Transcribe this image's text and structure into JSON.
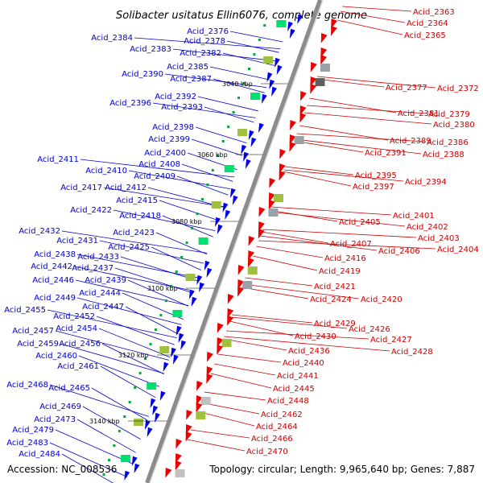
{
  "title": "Solibacter usitatus Ellin6076, complete genome",
  "accession": "Accession: NC_008536",
  "topology": "Topology: circular; Length: 9,965,640 bp; Genes: 7,887",
  "colors": {
    "backbone": "#8c8c8c",
    "forward": "#0000ee",
    "reverse": "#ee0000",
    "left_label": "#0000cc",
    "right_label": "#cc0000"
  },
  "ticks": [
    "3040 kbp",
    "3060 kbp",
    "3080 kbp",
    "3100 kbp",
    "3120 kbp",
    "3140 kbp"
  ],
  "left_labels": [
    "Acid_2376",
    "Acid_2384",
    "Acid_2378",
    "Acid_2383",
    "Acid_2382",
    "Acid_2385",
    "Acid_2390",
    "Acid_2387",
    "Acid_2392",
    "Acid_2396",
    "Acid_2393",
    "Acid_2398",
    "Acid_2399",
    "Acid_2400",
    "Acid_2408",
    "Acid_2411",
    "Acid_2410",
    "Acid_2409",
    "Acid_2417",
    "Acid_2412",
    "Acid_2415",
    "Acid_2422",
    "Acid_2418",
    "Acid_2423",
    "Acid_2432",
    "Acid_2431",
    "Acid_2425",
    "Acid_2438",
    "Acid_2433",
    "Acid_2442",
    "Acid_2437",
    "Acid_2446",
    "Acid_2439",
    "Acid_2444",
    "Acid_2449",
    "Acid_2447",
    "Acid_2455",
    "Acid_2452",
    "Acid_2454",
    "Acid_2457",
    "Acid_2459",
    "Acid_2456",
    "Acid_2460",
    "Acid_2461",
    "Acid_2468",
    "Acid_2465",
    "Acid_2469",
    "Acid_2473",
    "Acid_2479",
    "Acid_2483",
    "Acid_2484"
  ],
  "right_labels": [
    "Acid_2363",
    "Acid_2364",
    "Acid_2365",
    "Acid_2377",
    "Acid_2372",
    "Acid_2381",
    "Acid_2379",
    "Acid_2380",
    "Acid_2389",
    "Acid_2386",
    "Acid_2391",
    "Acid_2388",
    "Acid_2395",
    "Acid_2394",
    "Acid_2397",
    "Acid_2401",
    "Acid_2405",
    "Acid_2402",
    "Acid_2403",
    "Acid_2407",
    "Acid_2406",
    "Acid_2404",
    "Acid_2416",
    "Acid_2419",
    "Acid_2421",
    "Acid_2424",
    "Acid_2420",
    "Acid_2429",
    "Acid_2426",
    "Acid_2430",
    "Acid_2427",
    "Acid_2436",
    "Acid_2428",
    "Acid_2440",
    "Acid_2441",
    "Acid_2445",
    "Acid_2448",
    "Acid_2462",
    "Acid_2464",
    "Acid_2466",
    "Acid_2470"
  ]
}
